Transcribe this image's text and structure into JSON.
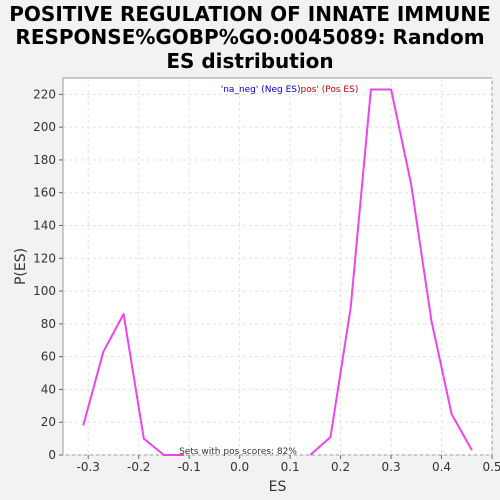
{
  "title": {
    "line1": "POSITIVE REGULATION OF INNATE IMMUNE",
    "line2": "RESPONSE%GOBP%GO:0045089: Random",
    "line3": "ES distribution"
  },
  "chart_data": {
    "type": "line",
    "xlabel": "ES",
    "ylabel": "P(ES)",
    "xlim": [
      -0.35,
      0.5
    ],
    "ylim": [
      0,
      230
    ],
    "xticks": [
      -0.3,
      -0.2,
      -0.1,
      0.0,
      0.1,
      0.2,
      0.3,
      0.4,
      0.5
    ],
    "xtick_labels": [
      "-0.3",
      "-0.2",
      "-0.1",
      "0.0",
      "0.1",
      "0.2",
      "0.3",
      "0.4",
      "0.5"
    ],
    "yticks": [
      0,
      20,
      40,
      60,
      80,
      100,
      120,
      140,
      160,
      180,
      200,
      220
    ],
    "ytick_labels": [
      "0",
      "20",
      "40",
      "60",
      "80",
      "100",
      "120",
      "140",
      "160",
      "180",
      "200",
      "220"
    ],
    "grid": true,
    "legend": {
      "placement": "top-center",
      "entries": [
        {
          "text": "'na_neg' (Neg ES)",
          "color": "#0000cc"
        },
        {
          "text": "pos' (Pos ES)",
          "color": "#cc0000"
        }
      ]
    },
    "annotation": "Sets with pos scores: 82%",
    "series": [
      {
        "color": "#ee44ee",
        "x": [
          -0.31,
          -0.27,
          -0.23,
          -0.19,
          -0.15,
          -0.11
        ],
        "y": [
          18,
          63,
          86,
          10,
          0,
          0
        ]
      },
      {
        "color": "#ee44ee",
        "x": [
          0.14,
          0.18,
          0.22,
          0.26,
          0.3,
          0.34,
          0.38,
          0.42,
          0.46
        ],
        "y": [
          0,
          11,
          90,
          223,
          223,
          165,
          82,
          25,
          3
        ]
      }
    ]
  }
}
